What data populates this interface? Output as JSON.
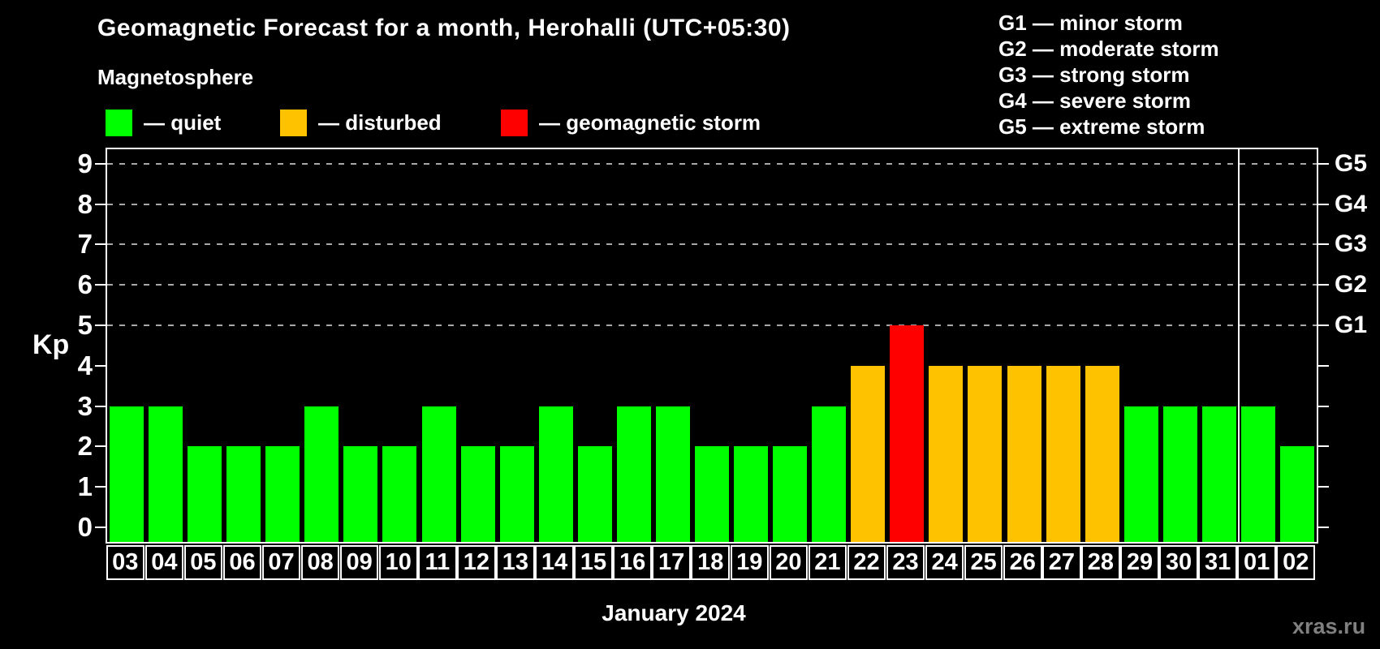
{
  "chart_data": {
    "type": "bar",
    "title": "Geomagnetic Forecast for a month, Herohalli (UTC+05:30)",
    "subtitle": "Magnetosphere",
    "xlabel": "January 2024",
    "ylabel": "Kp",
    "ylim": [
      0,
      9
    ],
    "y_ticks": [
      0,
      1,
      2,
      3,
      4,
      5,
      6,
      7,
      8,
      9
    ],
    "grid": "dashed horizontal lines at Kp 5-9 (G1-G5 levels)",
    "legend_position": "top-left swatches, top-right G scale",
    "categories": [
      "03",
      "04",
      "05",
      "06",
      "07",
      "08",
      "09",
      "10",
      "11",
      "12",
      "13",
      "14",
      "15",
      "16",
      "17",
      "18",
      "19",
      "20",
      "21",
      "22",
      "23",
      "24",
      "25",
      "26",
      "27",
      "28",
      "29",
      "30",
      "31",
      "01",
      "02"
    ],
    "values": [
      3,
      3,
      2,
      2,
      2,
      3,
      2,
      2,
      3,
      2,
      2,
      3,
      2,
      3,
      3,
      2,
      2,
      2,
      3,
      4,
      5,
      4,
      4,
      4,
      4,
      4,
      3,
      3,
      3,
      3,
      2
    ],
    "statuses": [
      "quiet",
      "quiet",
      "quiet",
      "quiet",
      "quiet",
      "quiet",
      "quiet",
      "quiet",
      "quiet",
      "quiet",
      "quiet",
      "quiet",
      "quiet",
      "quiet",
      "quiet",
      "quiet",
      "quiet",
      "quiet",
      "quiet",
      "disturbed",
      "storm",
      "disturbed",
      "disturbed",
      "disturbed",
      "disturbed",
      "disturbed",
      "quiet",
      "quiet",
      "quiet",
      "quiet",
      "quiet"
    ],
    "status_colors": {
      "quiet": "#00FF00",
      "disturbed": "#FFC200",
      "storm": "#FF0000"
    },
    "legend": [
      {
        "status": "quiet",
        "label": "— quiet"
      },
      {
        "status": "disturbed",
        "label": "— disturbed"
      },
      {
        "status": "storm",
        "label": "— geomagnetic storm"
      }
    ],
    "g_scale_legend": [
      "G1 — minor storm",
      "G2 — moderate storm",
      "G3 — strong storm",
      "G4 — severe storm",
      "G5 — extreme storm"
    ],
    "right_axis_levels": [
      {
        "label": "G1",
        "kp": 5
      },
      {
        "label": "G2",
        "kp": 6
      },
      {
        "label": "G3",
        "kp": 7
      },
      {
        "label": "G4",
        "kp": 8
      },
      {
        "label": "G5",
        "kp": 9
      }
    ],
    "gridline_levels": [
      5,
      6,
      7,
      8,
      9
    ],
    "month_separator_after_index": 28
  },
  "watermark": "xras.ru",
  "colors": {
    "background": "#000000",
    "text": "#FFFFFF",
    "frame": "#FFFFFF",
    "gridline": "#A8A8A8",
    "watermark": "#808080"
  }
}
